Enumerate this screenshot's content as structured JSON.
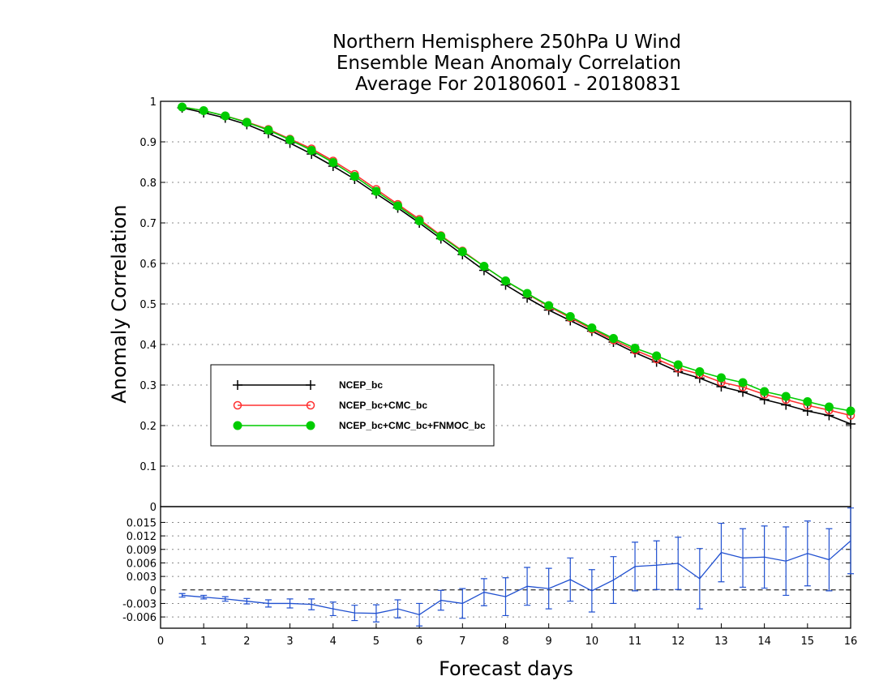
{
  "chart_data": [
    {
      "type": "line",
      "title": [
        "Northern Hemisphere 250hPa U Wind",
        "Ensemble Mean Anomaly Correlation",
        "Average For 20180601 - 20180831"
      ],
      "ylabel": "Anomaly Correlation",
      "ylim": [
        0,
        1
      ],
      "yticks": [
        "0",
        "0.1",
        "0.2",
        "0.3",
        "0.4",
        "0.5",
        "0.6",
        "0.7",
        "0.8",
        "0.9",
        "1"
      ],
      "grid": true,
      "legend_position": "left",
      "x": [
        0.5,
        1,
        1.5,
        2,
        2.5,
        3,
        3.5,
        4,
        4.5,
        5,
        5.5,
        6,
        6.5,
        7,
        7.5,
        8,
        8.5,
        9,
        9.5,
        10,
        10.5,
        11,
        11.5,
        12,
        12.5,
        13,
        13.5,
        14,
        14.5,
        15,
        15.5,
        16
      ],
      "series": [
        {
          "name": "NCEP_bc",
          "color": "#000000",
          "marker": "plus",
          "values": [
            0.984,
            0.972,
            0.959,
            0.943,
            0.921,
            0.897,
            0.87,
            0.84,
            0.808,
            0.772,
            0.737,
            0.7,
            0.661,
            0.622,
            0.583,
            0.547,
            0.515,
            0.485,
            0.459,
            0.433,
            0.406,
            0.38,
            0.357,
            0.333,
            0.317,
            0.296,
            0.283,
            0.264,
            0.251,
            0.236,
            0.225,
            0.204
          ]
        },
        {
          "name": "NCEP_bc+CMC_bc",
          "color": "#ff3030",
          "marker": "open-circle",
          "values": [
            0.986,
            0.977,
            0.964,
            0.949,
            0.931,
            0.907,
            0.883,
            0.853,
            0.82,
            0.783,
            0.746,
            0.709,
            0.669,
            0.631,
            0.593,
            0.557,
            0.525,
            0.494,
            0.466,
            0.438,
            0.411,
            0.386,
            0.364,
            0.341,
            0.327,
            0.307,
            0.295,
            0.277,
            0.264,
            0.25,
            0.238,
            0.225
          ]
        },
        {
          "name": "NCEP_bc+CMC_bc+FNMOC_bc",
          "color": "#00cc00",
          "marker": "filled-circle",
          "values": [
            0.986,
            0.977,
            0.964,
            0.948,
            0.929,
            0.905,
            0.879,
            0.849,
            0.815,
            0.778,
            0.742,
            0.705,
            0.667,
            0.629,
            0.593,
            0.557,
            0.526,
            0.496,
            0.469,
            0.441,
            0.415,
            0.391,
            0.372,
            0.35,
            0.333,
            0.318,
            0.306,
            0.284,
            0.272,
            0.259,
            0.246,
            0.236
          ]
        }
      ]
    },
    {
      "type": "line",
      "xlabel": "Forecast days",
      "xlim": [
        0,
        16
      ],
      "xticks": [
        "0",
        "1",
        "2",
        "3",
        "4",
        "5",
        "6",
        "7",
        "8",
        "9",
        "10",
        "11",
        "12",
        "13",
        "14",
        "15",
        "16"
      ],
      "ylim": [
        -0.0085,
        0.0185
      ],
      "yticks": [
        "-0.006",
        "-0.003",
        "0",
        "0.003",
        "0.006",
        "0.009",
        "0.012",
        "0.015"
      ],
      "grid": true,
      "series": [
        {
          "name": "",
          "color": "#2050d0",
          "marker": "error-bar",
          "x": [
            0.5,
            1,
            1.5,
            2,
            2.5,
            3,
            3.5,
            4,
            4.5,
            5,
            5.5,
            6,
            6.5,
            7,
            7.5,
            8,
            8.5,
            9,
            9.5,
            10,
            10.5,
            11,
            11.5,
            12,
            12.5,
            13,
            13.5,
            14,
            14.5,
            15,
            15.5,
            16
          ],
          "values": [
            -0.0012,
            -0.0016,
            -0.002,
            -0.0025,
            -0.003,
            -0.003,
            -0.0032,
            -0.0042,
            -0.0051,
            -0.0052,
            -0.0042,
            -0.0055,
            -0.0023,
            -0.003,
            -0.0005,
            -0.0015,
            0.0008,
            0.0003,
            0.0023,
            -0.0002,
            0.0022,
            0.0052,
            0.0055,
            0.0059,
            0.0025,
            0.0083,
            0.0071,
            0.0073,
            0.0064,
            0.0081,
            0.0067,
            0.0109
          ],
          "error": [
            0.0004,
            0.0004,
            0.0005,
            0.0006,
            0.0008,
            0.001,
            0.0012,
            0.0015,
            0.0017,
            0.0019,
            0.002,
            0.0025,
            0.0022,
            0.0033,
            0.003,
            0.0042,
            0.0042,
            0.0045,
            0.0048,
            0.0047,
            0.0052,
            0.0054,
            0.0054,
            0.0058,
            0.0067,
            0.0065,
            0.0065,
            0.0069,
            0.0076,
            0.0072,
            0.0069,
            0.0073
          ]
        }
      ]
    }
  ]
}
